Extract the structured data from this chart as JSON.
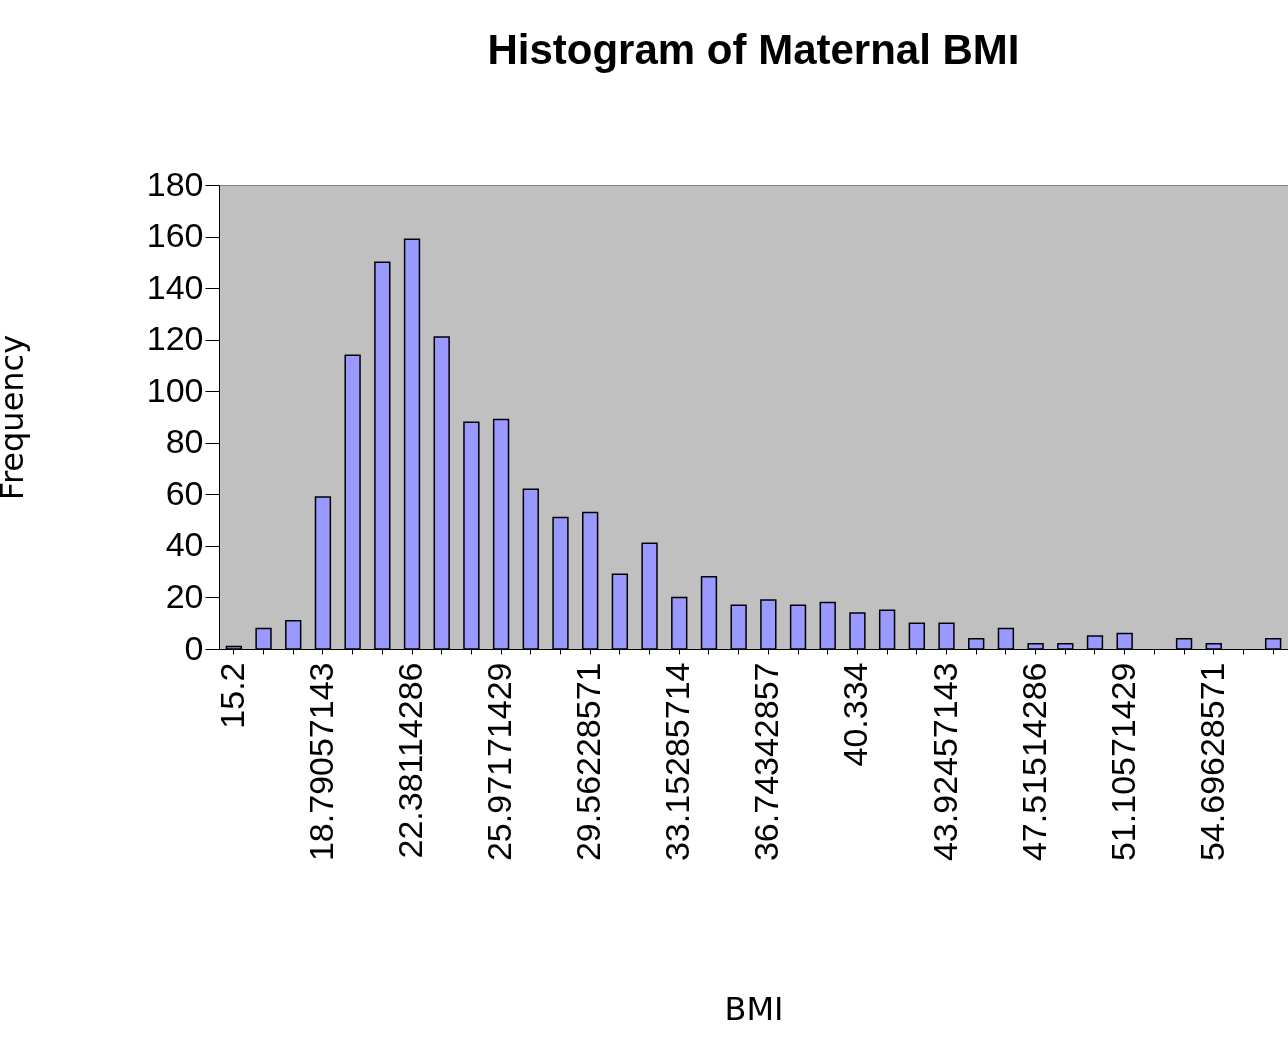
{
  "chart_data": {
    "type": "bar",
    "title": "Histogram of Maternal BMI",
    "xlabel": "BMI",
    "ylabel": "Frequency",
    "categories": [
      "15.2",
      null,
      null,
      "18.79057143",
      null,
      null,
      "22.38114286",
      null,
      null,
      "25.97171429",
      null,
      null,
      "29.56228571",
      null,
      null,
      "33.15285714",
      null,
      null,
      "36.74342857",
      null,
      null,
      "40.334",
      null,
      null,
      "43.92457143",
      null,
      null,
      "47.51514286",
      null,
      null,
      "51.10571429",
      null,
      null,
      "54.69628571",
      null,
      null
    ],
    "values": [
      1,
      8,
      11,
      59,
      114,
      150,
      159,
      121,
      88,
      89,
      62,
      51,
      53,
      29,
      41,
      20,
      28,
      17,
      19,
      17,
      18,
      14,
      15,
      10,
      10,
      4,
      8,
      2,
      2,
      5,
      6,
      0,
      4,
      2,
      0,
      4
    ],
    "color": "#9999ff",
    "ylim": [
      0,
      180
    ],
    "yticks": [
      0,
      20,
      40,
      60,
      80,
      100,
      120,
      140,
      160,
      180
    ]
  }
}
